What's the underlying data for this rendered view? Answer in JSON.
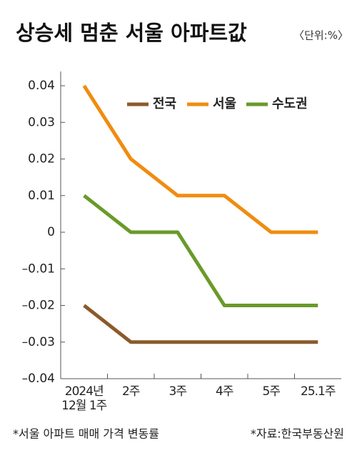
{
  "chart_data": {
    "type": "line",
    "title": "상승세 멈춘 서울 아파트값",
    "unit": "〈단위:%〉",
    "categories": [
      "2024년\n12월 1주",
      "2주",
      "3주",
      "4주",
      "5주",
      "25.1주"
    ],
    "series": [
      {
        "name": "전국",
        "color": "#8b5a2b",
        "values": [
          -0.02,
          -0.03,
          -0.03,
          -0.03,
          -0.03,
          -0.03
        ]
      },
      {
        "name": "서울",
        "color": "#f08c10",
        "values": [
          0.04,
          0.02,
          0.01,
          0.01,
          0,
          0
        ]
      },
      {
        "name": "수도권",
        "color": "#6a9a2a",
        "values": [
          0.01,
          0,
          0,
          -0.02,
          -0.02,
          -0.02
        ]
      }
    ],
    "ylim": [
      -0.04,
      0.04
    ],
    "yticks": [
      {
        "value": -0.04,
        "label": "–0.04"
      },
      {
        "value": -0.03,
        "label": "–0.03"
      },
      {
        "value": -0.02,
        "label": "–0.02"
      },
      {
        "value": -0.01,
        "label": "–0.01"
      },
      0,
      0.01,
      0.02,
      0.03,
      0.04
    ],
    "notes": [
      "*서울 아파트 매매 가격 변동률",
      "*자료:한국부동산원"
    ]
  }
}
